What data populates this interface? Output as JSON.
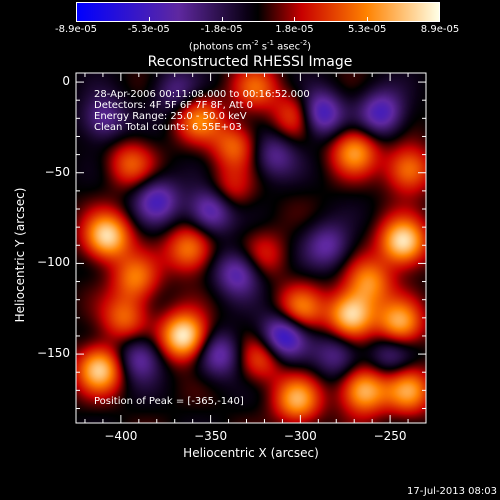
{
  "chart_data": {
    "type": "heatmap",
    "title": "Reconstructed RHESSI Image",
    "xlabel": "Heliocentric X (arcsec)",
    "ylabel": "Heliocentric Y (arcsec)",
    "xlim": [
      -425,
      -230
    ],
    "ylim": [
      -188,
      5
    ],
    "x_ticks": [
      -400,
      -350,
      -300,
      -250
    ],
    "y_ticks": [
      0,
      -50,
      -100,
      -150
    ],
    "colorbar": {
      "ticks": [
        "-8.9e-05",
        "-5.3e-05",
        "-1.8e-05",
        "1.8e-05",
        "5.3e-05",
        "8.9e-05"
      ],
      "units_prefix": "(photons cm",
      "units_exp1": "-2",
      "units_mid": " s",
      "units_exp2": "-1",
      "units_end": " asec",
      "units_exp3": "-2",
      "units_close": ")",
      "colors": [
        "#0000ff",
        "#5a2a9a",
        "#000000",
        "#c00000",
        "#ff8000",
        "#ffffe0"
      ]
    },
    "info_lines": [
      "28-Apr-2006 00:11:08.000 to 00:16:52.000",
      "Detectors: 4F 5F 6F 7F 8F, Att 0",
      "Energy Range: 25.0 - 50.0 keV",
      "Clean    Total counts: 6.55E+03"
    ],
    "peak_label": "Position of Peak = [-365,-140]",
    "peak": [
      -365,
      -140
    ],
    "sources": [
      {
        "x": -365,
        "y": -140,
        "v": 1.0
      },
      {
        "x": -412,
        "y": -158,
        "v": 0.85
      },
      {
        "x": -408,
        "y": -85,
        "v": 0.9
      },
      {
        "x": -392,
        "y": -108,
        "v": 0.55
      },
      {
        "x": -362,
        "y": -92,
        "v": 0.6
      },
      {
        "x": -395,
        "y": -45,
        "v": 0.45
      },
      {
        "x": -357,
        "y": -20,
        "v": 0.55
      },
      {
        "x": -337,
        "y": -35,
        "v": 0.5
      },
      {
        "x": -325,
        "y": -3,
        "v": 0.45
      },
      {
        "x": -302,
        "y": -18,
        "v": 0.5
      },
      {
        "x": -270,
        "y": -38,
        "v": 0.65
      },
      {
        "x": -240,
        "y": -48,
        "v": 0.6
      },
      {
        "x": -243,
        "y": -88,
        "v": 0.95
      },
      {
        "x": -262,
        "y": -110,
        "v": 0.6
      },
      {
        "x": -272,
        "y": -128,
        "v": 0.9
      },
      {
        "x": -245,
        "y": -133,
        "v": 0.75
      },
      {
        "x": -300,
        "y": -125,
        "v": 0.55
      },
      {
        "x": -322,
        "y": -152,
        "v": 0.45
      },
      {
        "x": -265,
        "y": -170,
        "v": 0.8
      },
      {
        "x": -240,
        "y": -170,
        "v": 0.65
      },
      {
        "x": -302,
        "y": -175,
        "v": 0.7
      },
      {
        "x": -398,
        "y": -130,
        "v": 0.5
      },
      {
        "x": -340,
        "y": -60,
        "v": 0.35
      },
      {
        "x": -320,
        "y": -95,
        "v": 0.3
      },
      {
        "x": -285,
        "y": -90,
        "v": -0.45
      },
      {
        "x": -290,
        "y": -17,
        "v": -0.75
      },
      {
        "x": -255,
        "y": -17,
        "v": -0.6
      },
      {
        "x": -350,
        "y": -70,
        "v": -0.65
      },
      {
        "x": -335,
        "y": -105,
        "v": -0.55
      },
      {
        "x": -345,
        "y": -150,
        "v": -0.5
      },
      {
        "x": -310,
        "y": -140,
        "v": -0.75
      },
      {
        "x": -390,
        "y": -152,
        "v": -0.5
      },
      {
        "x": -380,
        "y": -65,
        "v": -0.55
      },
      {
        "x": -280,
        "y": -150,
        "v": -0.4
      },
      {
        "x": -315,
        "y": -40,
        "v": -0.4
      },
      {
        "x": -410,
        "y": -20,
        "v": -0.45
      },
      {
        "x": -250,
        "y": -150,
        "v": -0.35
      },
      {
        "x": -370,
        "y": -5,
        "v": -0.35
      }
    ]
  },
  "footer": {
    "timestamp": "17-Jul-2013 08:03"
  }
}
